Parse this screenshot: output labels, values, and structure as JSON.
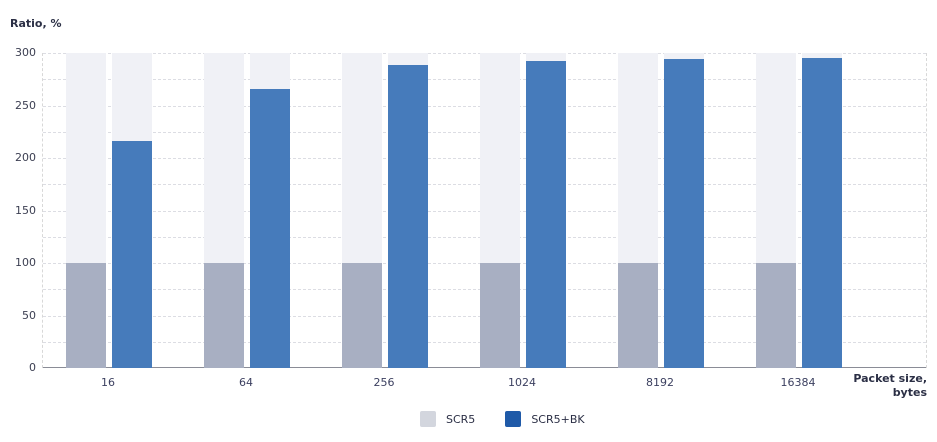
{
  "chart_data": {
    "type": "bar",
    "title": "",
    "ylabel": "Ratio, %",
    "xlabel": "Packet size, bytes",
    "xlabel_lines": [
      "Packet size,",
      "bytes"
    ],
    "ylim": [
      0,
      300
    ],
    "yticks": [
      0,
      50,
      100,
      150,
      200,
      250,
      300
    ],
    "categories": [
      "16",
      "64",
      "256",
      "1024",
      "8192",
      "16384"
    ],
    "series": [
      {
        "name": "SCR5",
        "color": "#a8afc2",
        "legend_color": "#d3d6de",
        "values": [
          100,
          100,
          100,
          100,
          100,
          100
        ]
      },
      {
        "name": "SCR5+BK",
        "color": "#467bbb",
        "legend_color": "#1f5aa8",
        "values": [
          216,
          266,
          289,
          292,
          294,
          295
        ]
      }
    ],
    "grid": true,
    "legend_position": "bottom"
  }
}
